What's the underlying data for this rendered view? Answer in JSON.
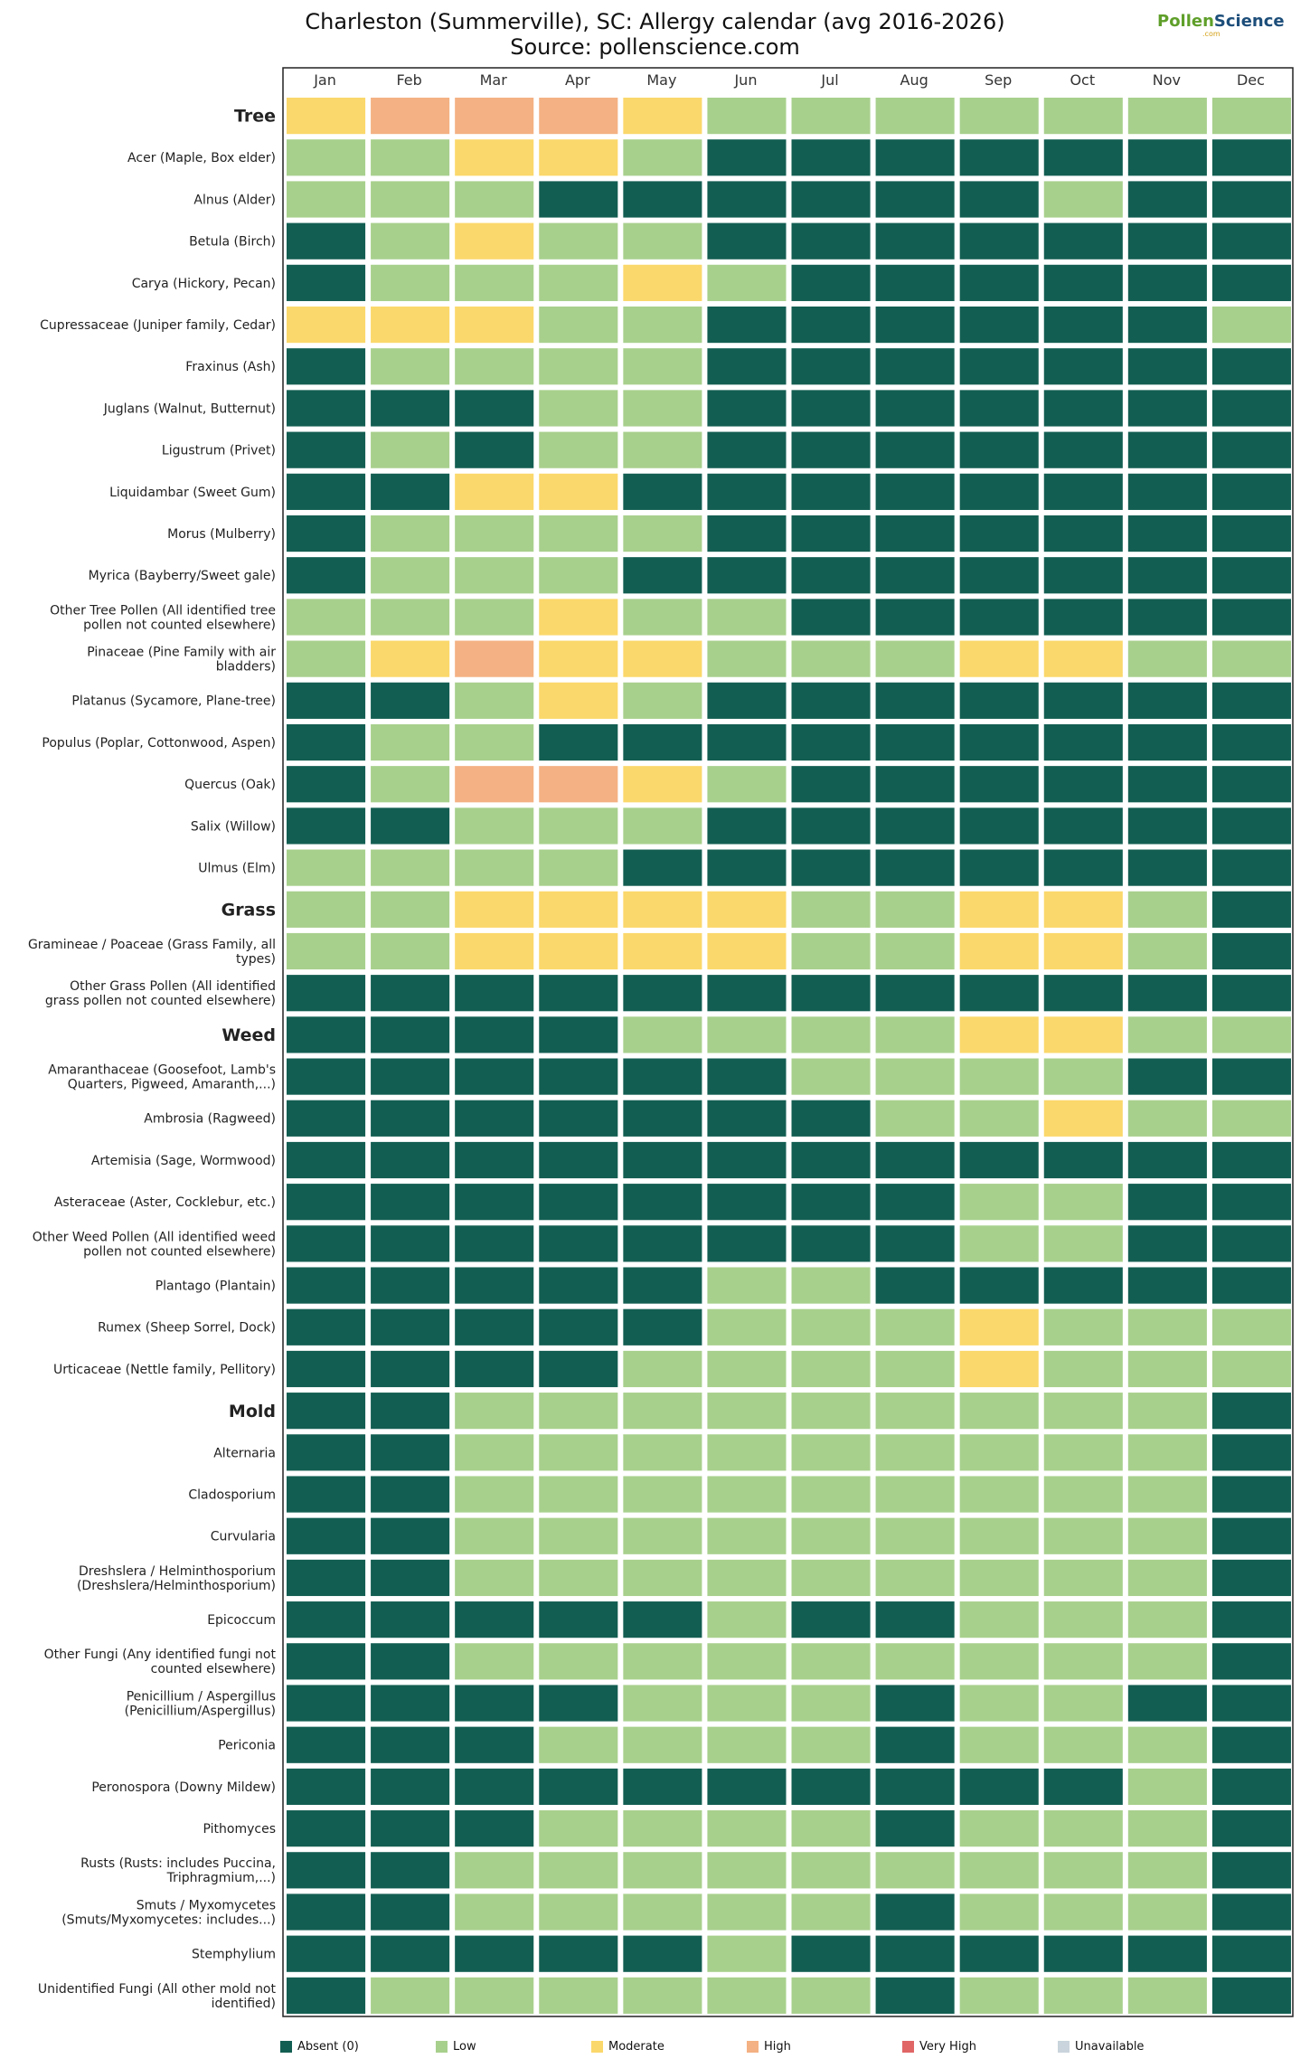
{
  "title_line1": "Charleston (Summerville), SC: Allergy calendar (avg 2016-2026)",
  "title_line2": "Source: pollenscience.com",
  "logo": {
    "part1": "Pollen",
    "part2": "Science",
    "sub": ".com"
  },
  "chart_data": {
    "type": "heatmap",
    "x_categories": [
      "Jan",
      "Feb",
      "Mar",
      "Apr",
      "May",
      "Jun",
      "Jul",
      "Aug",
      "Sep",
      "Oct",
      "Nov",
      "Dec"
    ],
    "levels": [
      "Absent (0)",
      "Low",
      "Moderate",
      "High",
      "Very High",
      "Unavailable"
    ],
    "colors": {
      "Absent (0)": "#135e52",
      "Low": "#a8d08d",
      "Moderate": "#fbd86b",
      "High": "#f4b183",
      "Very High": "#e06666",
      "Unavailable": "#c9d4dc"
    },
    "rows": [
      {
        "label": "Tree",
        "header": true,
        "monthly": [
          "Moderate",
          "High",
          "High",
          "High",
          "Moderate",
          "Low",
          "Low",
          "Low",
          "Low",
          "Low",
          "Low",
          "Low"
        ]
      },
      {
        "label": "Acer (Maple, Box elder)",
        "monthly": [
          "Low",
          "Low",
          "Moderate",
          "Moderate",
          "Low",
          "Absent (0)",
          "Absent (0)",
          "Absent (0)",
          "Absent (0)",
          "Absent (0)",
          "Absent (0)",
          "Absent (0)"
        ]
      },
      {
        "label": "Alnus (Alder)",
        "monthly": [
          "Low",
          "Low",
          "Low",
          "Absent (0)",
          "Absent (0)",
          "Absent (0)",
          "Absent (0)",
          "Absent (0)",
          "Absent (0)",
          "Low",
          "Absent (0)",
          "Absent (0)"
        ]
      },
      {
        "label": "Betula (Birch)",
        "monthly": [
          "Absent (0)",
          "Low",
          "Moderate",
          "Low",
          "Low",
          "Absent (0)",
          "Absent (0)",
          "Absent (0)",
          "Absent (0)",
          "Absent (0)",
          "Absent (0)",
          "Absent (0)"
        ]
      },
      {
        "label": "Carya (Hickory, Pecan)",
        "monthly": [
          "Absent (0)",
          "Low",
          "Low",
          "Low",
          "Moderate",
          "Low",
          "Absent (0)",
          "Absent (0)",
          "Absent (0)",
          "Absent (0)",
          "Absent (0)",
          "Absent (0)"
        ]
      },
      {
        "label": "Cupressaceae (Juniper family, Cedar)",
        "monthly": [
          "Moderate",
          "Moderate",
          "Moderate",
          "Low",
          "Low",
          "Absent (0)",
          "Absent (0)",
          "Absent (0)",
          "Absent (0)",
          "Absent (0)",
          "Absent (0)",
          "Low"
        ]
      },
      {
        "label": "Fraxinus (Ash)",
        "monthly": [
          "Absent (0)",
          "Low",
          "Low",
          "Low",
          "Low",
          "Absent (0)",
          "Absent (0)",
          "Absent (0)",
          "Absent (0)",
          "Absent (0)",
          "Absent (0)",
          "Absent (0)"
        ]
      },
      {
        "label": "Juglans (Walnut, Butternut)",
        "monthly": [
          "Absent (0)",
          "Absent (0)",
          "Absent (0)",
          "Low",
          "Low",
          "Absent (0)",
          "Absent (0)",
          "Absent (0)",
          "Absent (0)",
          "Absent (0)",
          "Absent (0)",
          "Absent (0)"
        ]
      },
      {
        "label": "Ligustrum (Privet)",
        "monthly": [
          "Absent (0)",
          "Low",
          "Absent (0)",
          "Low",
          "Low",
          "Absent (0)",
          "Absent (0)",
          "Absent (0)",
          "Absent (0)",
          "Absent (0)",
          "Absent (0)",
          "Absent (0)"
        ]
      },
      {
        "label": "Liquidambar (Sweet Gum)",
        "monthly": [
          "Absent (0)",
          "Absent (0)",
          "Moderate",
          "Moderate",
          "Absent (0)",
          "Absent (0)",
          "Absent (0)",
          "Absent (0)",
          "Absent (0)",
          "Absent (0)",
          "Absent (0)",
          "Absent (0)"
        ]
      },
      {
        "label": "Morus (Mulberry)",
        "monthly": [
          "Absent (0)",
          "Low",
          "Low",
          "Low",
          "Low",
          "Absent (0)",
          "Absent (0)",
          "Absent (0)",
          "Absent (0)",
          "Absent (0)",
          "Absent (0)",
          "Absent (0)"
        ]
      },
      {
        "label": "Myrica (Bayberry/Sweet gale)",
        "monthly": [
          "Absent (0)",
          "Low",
          "Low",
          "Low",
          "Absent (0)",
          "Absent (0)",
          "Absent (0)",
          "Absent (0)",
          "Absent (0)",
          "Absent (0)",
          "Absent (0)",
          "Absent (0)"
        ]
      },
      {
        "label": "Other Tree Pollen (All identified tree pollen not counted elsewhere)",
        "monthly": [
          "Low",
          "Low",
          "Low",
          "Moderate",
          "Low",
          "Low",
          "Absent (0)",
          "Absent (0)",
          "Absent (0)",
          "Absent (0)",
          "Absent (0)",
          "Absent (0)"
        ]
      },
      {
        "label": "Pinaceae (Pine Family with air bladders)",
        "monthly": [
          "Low",
          "Moderate",
          "High",
          "Moderate",
          "Moderate",
          "Low",
          "Low",
          "Low",
          "Moderate",
          "Moderate",
          "Low",
          "Low"
        ]
      },
      {
        "label": "Platanus (Sycamore, Plane-tree)",
        "monthly": [
          "Absent (0)",
          "Absent (0)",
          "Low",
          "Moderate",
          "Low",
          "Absent (0)",
          "Absent (0)",
          "Absent (0)",
          "Absent (0)",
          "Absent (0)",
          "Absent (0)",
          "Absent (0)"
        ]
      },
      {
        "label": "Populus (Poplar, Cottonwood, Aspen)",
        "monthly": [
          "Absent (0)",
          "Low",
          "Low",
          "Absent (0)",
          "Absent (0)",
          "Absent (0)",
          "Absent (0)",
          "Absent (0)",
          "Absent (0)",
          "Absent (0)",
          "Absent (0)",
          "Absent (0)"
        ]
      },
      {
        "label": "Quercus (Oak)",
        "monthly": [
          "Absent (0)",
          "Low",
          "High",
          "High",
          "Moderate",
          "Low",
          "Absent (0)",
          "Absent (0)",
          "Absent (0)",
          "Absent (0)",
          "Absent (0)",
          "Absent (0)"
        ]
      },
      {
        "label": "Salix (Willow)",
        "monthly": [
          "Absent (0)",
          "Absent (0)",
          "Low",
          "Low",
          "Low",
          "Absent (0)",
          "Absent (0)",
          "Absent (0)",
          "Absent (0)",
          "Absent (0)",
          "Absent (0)",
          "Absent (0)"
        ]
      },
      {
        "label": "Ulmus (Elm)",
        "monthly": [
          "Low",
          "Low",
          "Low",
          "Low",
          "Absent (0)",
          "Absent (0)",
          "Absent (0)",
          "Absent (0)",
          "Absent (0)",
          "Absent (0)",
          "Absent (0)",
          "Absent (0)"
        ]
      },
      {
        "label": "Grass",
        "header": true,
        "monthly": [
          "Low",
          "Low",
          "Moderate",
          "Moderate",
          "Moderate",
          "Moderate",
          "Low",
          "Low",
          "Moderate",
          "Moderate",
          "Low",
          "Absent (0)"
        ]
      },
      {
        "label": "Gramineae / Poaceae (Grass Family, all types)",
        "monthly": [
          "Low",
          "Low",
          "Moderate",
          "Moderate",
          "Moderate",
          "Moderate",
          "Low",
          "Low",
          "Moderate",
          "Moderate",
          "Low",
          "Absent (0)"
        ]
      },
      {
        "label": "Other Grass Pollen (All identified grass pollen not counted elsewhere)",
        "monthly": [
          "Absent (0)",
          "Absent (0)",
          "Absent (0)",
          "Absent (0)",
          "Absent (0)",
          "Absent (0)",
          "Absent (0)",
          "Absent (0)",
          "Absent (0)",
          "Absent (0)",
          "Absent (0)",
          "Absent (0)"
        ]
      },
      {
        "label": "Weed",
        "header": true,
        "monthly": [
          "Absent (0)",
          "Absent (0)",
          "Absent (0)",
          "Absent (0)",
          "Low",
          "Low",
          "Low",
          "Low",
          "Moderate",
          "Moderate",
          "Low",
          "Low"
        ]
      },
      {
        "label": "Amaranthaceae (Goosefoot, Lamb's Quarters, Pigweed, Amaranth,...)",
        "monthly": [
          "Absent (0)",
          "Absent (0)",
          "Absent (0)",
          "Absent (0)",
          "Absent (0)",
          "Absent (0)",
          "Low",
          "Low",
          "Low",
          "Low",
          "Absent (0)",
          "Absent (0)"
        ]
      },
      {
        "label": "Ambrosia (Ragweed)",
        "monthly": [
          "Absent (0)",
          "Absent (0)",
          "Absent (0)",
          "Absent (0)",
          "Absent (0)",
          "Absent (0)",
          "Absent (0)",
          "Low",
          "Low",
          "Moderate",
          "Low",
          "Low"
        ]
      },
      {
        "label": "Artemisia (Sage, Wormwood)",
        "monthly": [
          "Absent (0)",
          "Absent (0)",
          "Absent (0)",
          "Absent (0)",
          "Absent (0)",
          "Absent (0)",
          "Absent (0)",
          "Absent (0)",
          "Absent (0)",
          "Absent (0)",
          "Absent (0)",
          "Absent (0)"
        ]
      },
      {
        "label": "Asteraceae (Aster, Cocklebur, etc.)",
        "monthly": [
          "Absent (0)",
          "Absent (0)",
          "Absent (0)",
          "Absent (0)",
          "Absent (0)",
          "Absent (0)",
          "Absent (0)",
          "Absent (0)",
          "Low",
          "Low",
          "Absent (0)",
          "Absent (0)"
        ]
      },
      {
        "label": "Other Weed Pollen (All identified weed pollen not counted elsewhere)",
        "monthly": [
          "Absent (0)",
          "Absent (0)",
          "Absent (0)",
          "Absent (0)",
          "Absent (0)",
          "Absent (0)",
          "Absent (0)",
          "Absent (0)",
          "Low",
          "Low",
          "Absent (0)",
          "Absent (0)"
        ]
      },
      {
        "label": "Plantago (Plantain)",
        "monthly": [
          "Absent (0)",
          "Absent (0)",
          "Absent (0)",
          "Absent (0)",
          "Absent (0)",
          "Low",
          "Low",
          "Absent (0)",
          "Absent (0)",
          "Absent (0)",
          "Absent (0)",
          "Absent (0)"
        ]
      },
      {
        "label": "Rumex (Sheep Sorrel, Dock)",
        "monthly": [
          "Absent (0)",
          "Absent (0)",
          "Absent (0)",
          "Absent (0)",
          "Absent (0)",
          "Low",
          "Low",
          "Low",
          "Moderate",
          "Low",
          "Low",
          "Low"
        ]
      },
      {
        "label": "Urticaceae (Nettle family, Pellitory)",
        "monthly": [
          "Absent (0)",
          "Absent (0)",
          "Absent (0)",
          "Absent (0)",
          "Low",
          "Low",
          "Low",
          "Low",
          "Moderate",
          "Low",
          "Low",
          "Low"
        ]
      },
      {
        "label": "Mold",
        "header": true,
        "monthly": [
          "Absent (0)",
          "Absent (0)",
          "Low",
          "Low",
          "Low",
          "Low",
          "Low",
          "Low",
          "Low",
          "Low",
          "Low",
          "Absent (0)"
        ]
      },
      {
        "label": "Alternaria",
        "monthly": [
          "Absent (0)",
          "Absent (0)",
          "Low",
          "Low",
          "Low",
          "Low",
          "Low",
          "Low",
          "Low",
          "Low",
          "Low",
          "Absent (0)"
        ]
      },
      {
        "label": "Cladosporium",
        "monthly": [
          "Absent (0)",
          "Absent (0)",
          "Low",
          "Low",
          "Low",
          "Low",
          "Low",
          "Low",
          "Low",
          "Low",
          "Low",
          "Absent (0)"
        ]
      },
      {
        "label": "Curvularia",
        "monthly": [
          "Absent (0)",
          "Absent (0)",
          "Low",
          "Low",
          "Low",
          "Low",
          "Low",
          "Low",
          "Low",
          "Low",
          "Low",
          "Absent (0)"
        ]
      },
      {
        "label": "Dreshslera / Helminthosporium (Dreshslera/Helminthosporium)",
        "monthly": [
          "Absent (0)",
          "Absent (0)",
          "Low",
          "Low",
          "Low",
          "Low",
          "Low",
          "Low",
          "Low",
          "Low",
          "Low",
          "Absent (0)"
        ]
      },
      {
        "label": "Epicoccum",
        "monthly": [
          "Absent (0)",
          "Absent (0)",
          "Absent (0)",
          "Absent (0)",
          "Absent (0)",
          "Low",
          "Absent (0)",
          "Absent (0)",
          "Low",
          "Low",
          "Low",
          "Absent (0)"
        ]
      },
      {
        "label": "Other Fungi (Any identified fungi not counted elsewhere)",
        "monthly": [
          "Absent (0)",
          "Absent (0)",
          "Low",
          "Low",
          "Low",
          "Low",
          "Low",
          "Low",
          "Low",
          "Low",
          "Low",
          "Absent (0)"
        ]
      },
      {
        "label": "Penicillium / Aspergillus (Penicillium/Aspergillus)",
        "monthly": [
          "Absent (0)",
          "Absent (0)",
          "Absent (0)",
          "Absent (0)",
          "Low",
          "Low",
          "Low",
          "Absent (0)",
          "Low",
          "Low",
          "Absent (0)",
          "Absent (0)"
        ]
      },
      {
        "label": "Periconia",
        "monthly": [
          "Absent (0)",
          "Absent (0)",
          "Absent (0)",
          "Low",
          "Low",
          "Low",
          "Low",
          "Absent (0)",
          "Low",
          "Low",
          "Low",
          "Absent (0)"
        ]
      },
      {
        "label": "Peronospora (Downy Mildew)",
        "monthly": [
          "Absent (0)",
          "Absent (0)",
          "Absent (0)",
          "Absent (0)",
          "Absent (0)",
          "Absent (0)",
          "Absent (0)",
          "Absent (0)",
          "Absent (0)",
          "Absent (0)",
          "Low",
          "Absent (0)"
        ]
      },
      {
        "label": "Pithomyces",
        "monthly": [
          "Absent (0)",
          "Absent (0)",
          "Absent (0)",
          "Low",
          "Low",
          "Low",
          "Low",
          "Absent (0)",
          "Low",
          "Low",
          "Low",
          "Absent (0)"
        ]
      },
      {
        "label": "Rusts (Rusts: includes Puccina, Triphragmium,...)",
        "monthly": [
          "Absent (0)",
          "Absent (0)",
          "Low",
          "Low",
          "Low",
          "Low",
          "Low",
          "Low",
          "Low",
          "Low",
          "Low",
          "Absent (0)"
        ]
      },
      {
        "label": "Smuts / Myxomycetes (Smuts/Myxomycetes: includes...)",
        "monthly": [
          "Absent (0)",
          "Absent (0)",
          "Low",
          "Low",
          "Low",
          "Low",
          "Low",
          "Absent (0)",
          "Low",
          "Low",
          "Low",
          "Absent (0)"
        ]
      },
      {
        "label": "Stemphylium",
        "monthly": [
          "Absent (0)",
          "Absent (0)",
          "Absent (0)",
          "Absent (0)",
          "Absent (0)",
          "Low",
          "Absent (0)",
          "Absent (0)",
          "Absent (0)",
          "Absent (0)",
          "Absent (0)",
          "Absent (0)"
        ]
      },
      {
        "label": "Unidentified Fungi (All other mold not identified)",
        "monthly": [
          "Absent (0)",
          "Low",
          "Low",
          "Low",
          "Low",
          "Low",
          "Low",
          "Absent (0)",
          "Low",
          "Low",
          "Low",
          "Absent (0)"
        ]
      }
    ]
  }
}
